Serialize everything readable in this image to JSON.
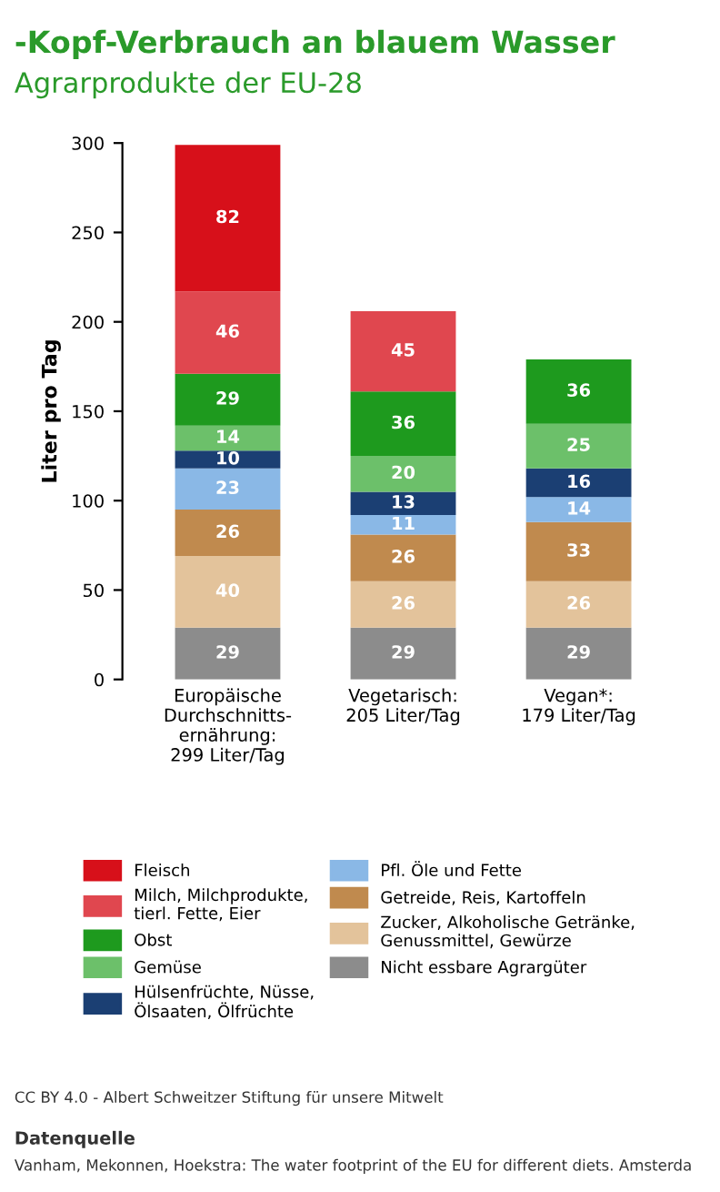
{
  "chart_data": {
    "type": "bar",
    "stacked": true,
    "title": "-Kopf-Verbrauch an blauem Wasser",
    "subtitle": "Agrarprodukte der EU-28",
    "ylabel": "Liter pro Tag",
    "categories": [
      "Europäische\nDurchschnitts-\nernährung:\n299 Liter/Tag",
      "Vegetarisch:\n205 Liter/Tag",
      "Vegan*:\n179 Liter/Tag"
    ],
    "series": [
      {
        "name": "Nicht essbare Agrargüter",
        "color": "#8c8c8c",
        "values": [
          29,
          29,
          29
        ]
      },
      {
        "name": "Zucker, Alkoholische Getränke,\nGenussmittel, Gewürze",
        "color": "#e3c39b",
        "values": [
          40,
          26,
          26
        ]
      },
      {
        "name": "Getreide, Reis, Kartoffeln",
        "color": "#c08a4e",
        "values": [
          26,
          26,
          33
        ]
      },
      {
        "name": "Pfl. Öle und Fette",
        "color": "#8ab8e6",
        "values": [
          23,
          11,
          14
        ]
      },
      {
        "name": "Hülsenfrüchte, Nüsse,\nÖlsaaten, Ölfrüchte",
        "color": "#1b3f73",
        "values": [
          10,
          13,
          16
        ]
      },
      {
        "name": "Gemüse",
        "color": "#6cc06a",
        "values": [
          14,
          20,
          25
        ]
      },
      {
        "name": "Obst",
        "color": "#1e9a1e",
        "values": [
          29,
          36,
          36
        ]
      },
      {
        "name": "Milch, Milchprodukte,\ntierl. Fette, Eier",
        "color": "#e0474f",
        "values": [
          46,
          45,
          null
        ]
      },
      {
        "name": "Fleisch",
        "color": "#d7101a",
        "values": [
          82,
          null,
          null
        ]
      }
    ],
    "ylim": [
      0,
      300
    ],
    "yticks": [
      0,
      50,
      100,
      150,
      200,
      250,
      300
    ],
    "grid": false,
    "legend": "bottom",
    "data_labels": true,
    "annotations": [
      "CC BY 4.0 - Albert Schweitzer Stiftung für unsere Mitwelt",
      "Datenquelle",
      "Vanham, Mekonnen, Hoekstra: The water footprint of the EU for different diets. Amsterda"
    ]
  }
}
